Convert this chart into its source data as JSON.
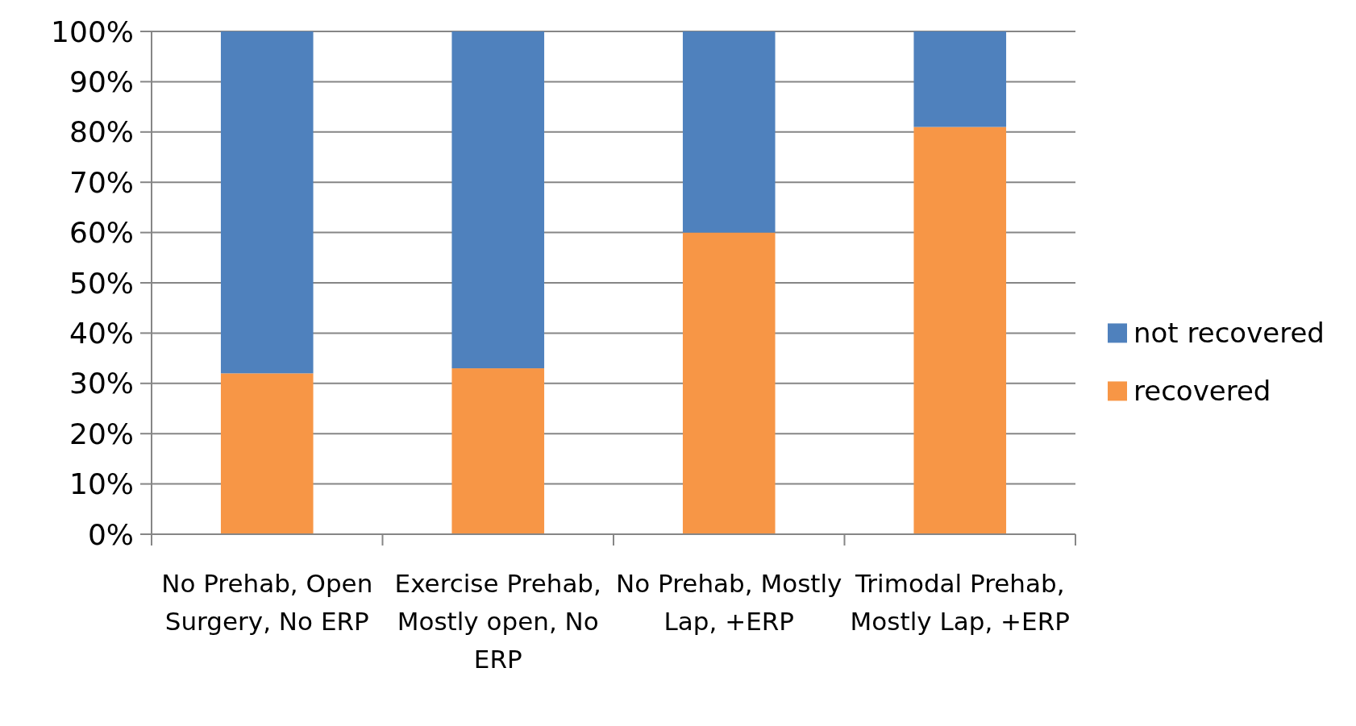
{
  "chart_data": {
    "type": "bar",
    "stacked": true,
    "categories": [
      "No Prehab, Open Surgery, No ERP",
      "Exercise Prehab, Mostly open,  No ERP",
      "No Prehab, Mostly Lap,  +ERP",
      "Trimodal Prehab, Mostly Lap, +ERP"
    ],
    "series": [
      {
        "name": "recovered",
        "color": "#f79646",
        "values": [
          32,
          33,
          60,
          81
        ]
      },
      {
        "name": "not recovered",
        "color": "#4f81bd",
        "values": [
          68,
          67,
          40,
          19
        ]
      }
    ],
    "ylim": [
      0,
      100
    ],
    "yticks": [
      {
        "value": 0,
        "label": "0%"
      },
      {
        "value": 10,
        "label": "10%"
      },
      {
        "value": 20,
        "label": "20%"
      },
      {
        "value": 30,
        "label": "30%"
      },
      {
        "value": 40,
        "label": "40%"
      },
      {
        "value": 50,
        "label": "50%"
      },
      {
        "value": 60,
        "label": "60%"
      },
      {
        "value": 70,
        "label": "70%"
      },
      {
        "value": 80,
        "label": "80%"
      },
      {
        "value": 90,
        "label": "90%"
      },
      {
        "value": 100,
        "label": "100%"
      }
    ],
    "grid": "y",
    "legend": "right"
  }
}
